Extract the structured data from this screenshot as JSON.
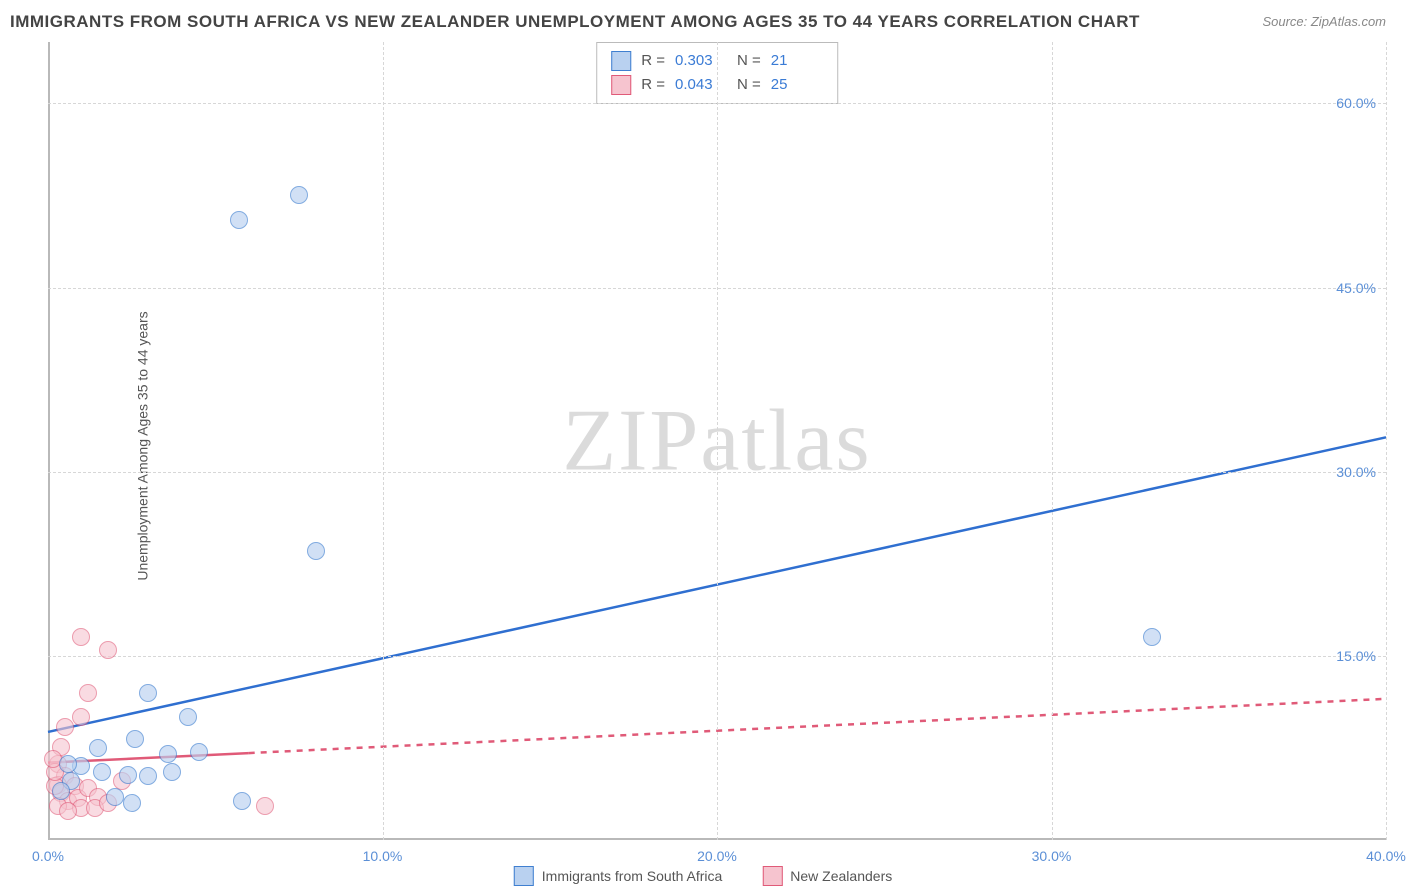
{
  "title_text": "IMMIGRANTS FROM SOUTH AFRICA VS NEW ZEALANDER UNEMPLOYMENT AMONG AGES 35 TO 44 YEARS CORRELATION CHART",
  "source_text": "Source: ZipAtlas.com",
  "ylabel_text": "Unemployment Among Ages 35 to 44 years",
  "watermark_text": "ZIPatlas",
  "chart": {
    "type": "scatter",
    "background_color": "#ffffff",
    "grid_color": "#d7d7d7",
    "axis_color": "#b9b9b9",
    "tick_color": "#5b8fd6",
    "tick_fontsize": 14,
    "title_fontsize": 17,
    "title_color": "#444444",
    "label_fontsize": 14,
    "label_color": "#555555",
    "xlim": [
      0,
      40
    ],
    "ylim": [
      0,
      65
    ],
    "xtick_step": 10,
    "ytick_step": 15,
    "xticks": [
      "0.0%",
      "10.0%",
      "20.0%",
      "30.0%",
      "40.0%"
    ],
    "yticks": [
      "15.0%",
      "30.0%",
      "45.0%",
      "60.0%"
    ],
    "marker_radius": 9,
    "marker_border_width": 1.4,
    "line_width": 2.5
  },
  "series": {
    "blue": {
      "label": "Immigrants from South Africa",
      "fill": "#b9d1f0",
      "stroke": "#3f7fd0",
      "fill_opacity": 0.65,
      "R": "0.303",
      "N": "21",
      "trend": {
        "x1": 0,
        "y1": 8.8,
        "x2": 40,
        "y2": 32.8,
        "color": "#2f6fd0",
        "dash": "none"
      },
      "points": [
        {
          "x": 7.5,
          "y": 52.5
        },
        {
          "x": 5.7,
          "y": 50.5
        },
        {
          "x": 8.0,
          "y": 23.5
        },
        {
          "x": 33.0,
          "y": 16.5
        },
        {
          "x": 3.0,
          "y": 12.0
        },
        {
          "x": 4.2,
          "y": 10.0
        },
        {
          "x": 4.5,
          "y": 7.2
        },
        {
          "x": 3.6,
          "y": 7.0
        },
        {
          "x": 2.6,
          "y": 8.2
        },
        {
          "x": 1.5,
          "y": 7.5
        },
        {
          "x": 1.6,
          "y": 5.5
        },
        {
          "x": 1.0,
          "y": 6.0
        },
        {
          "x": 0.6,
          "y": 6.2
        },
        {
          "x": 0.7,
          "y": 4.8
        },
        {
          "x": 2.4,
          "y": 5.3
        },
        {
          "x": 3.0,
          "y": 5.2
        },
        {
          "x": 3.7,
          "y": 5.5
        },
        {
          "x": 2.0,
          "y": 3.5
        },
        {
          "x": 2.5,
          "y": 3.0
        },
        {
          "x": 5.8,
          "y": 3.2
        },
        {
          "x": 0.4,
          "y": 4.0
        }
      ]
    },
    "pink": {
      "label": "New Zealanders",
      "fill": "#f6c4cf",
      "stroke": "#e05a78",
      "fill_opacity": 0.6,
      "R": "0.043",
      "N": "25",
      "trend": {
        "x1": 0,
        "y1": 6.3,
        "x2": 40,
        "y2": 11.5,
        "color": "#e05a78",
        "dash": "6 6",
        "solid_until_x": 6.0
      },
      "points": [
        {
          "x": 1.0,
          "y": 16.5
        },
        {
          "x": 1.8,
          "y": 15.5
        },
        {
          "x": 1.2,
          "y": 12.0
        },
        {
          "x": 1.0,
          "y": 10.0
        },
        {
          "x": 0.5,
          "y": 9.2
        },
        {
          "x": 0.4,
          "y": 7.6
        },
        {
          "x": 0.3,
          "y": 6.2
        },
        {
          "x": 0.5,
          "y": 5.2
        },
        {
          "x": 0.3,
          "y": 4.5
        },
        {
          "x": 0.4,
          "y": 3.8
        },
        {
          "x": 0.6,
          "y": 3.2
        },
        {
          "x": 0.2,
          "y": 4.4
        },
        {
          "x": 0.2,
          "y": 5.5
        },
        {
          "x": 0.8,
          "y": 4.4
        },
        {
          "x": 0.9,
          "y": 3.4
        },
        {
          "x": 1.2,
          "y": 4.2
        },
        {
          "x": 1.0,
          "y": 2.6
        },
        {
          "x": 1.5,
          "y": 3.5
        },
        {
          "x": 1.4,
          "y": 2.6
        },
        {
          "x": 1.8,
          "y": 3.0
        },
        {
          "x": 0.3,
          "y": 2.8
        },
        {
          "x": 0.6,
          "y": 2.4
        },
        {
          "x": 2.2,
          "y": 4.8
        },
        {
          "x": 0.15,
          "y": 6.6
        },
        {
          "x": 6.5,
          "y": 2.8
        }
      ]
    }
  },
  "legend_top": {
    "R_label": "R =",
    "N_label": "N ="
  }
}
